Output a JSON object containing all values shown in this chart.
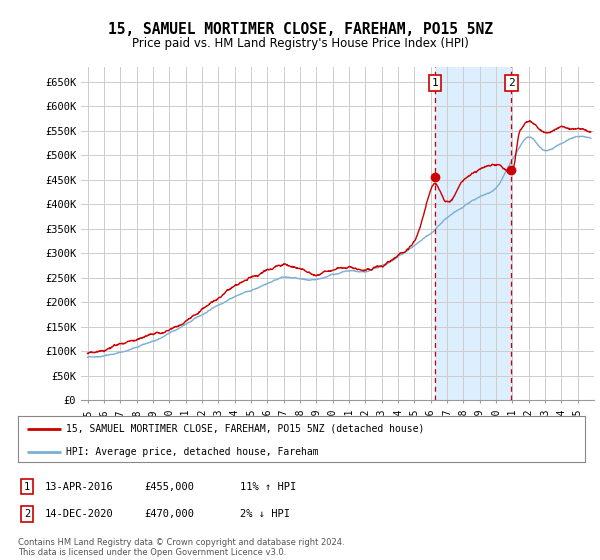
{
  "title": "15, SAMUEL MORTIMER CLOSE, FAREHAM, PO15 5NZ",
  "subtitle": "Price paid vs. HM Land Registry's House Price Index (HPI)",
  "ylim": [
    0,
    680000
  ],
  "yticks": [
    0,
    50000,
    100000,
    150000,
    200000,
    250000,
    300000,
    350000,
    400000,
    450000,
    500000,
    550000,
    600000,
    650000
  ],
  "ytick_labels": [
    "£0",
    "£50K",
    "£100K",
    "£150K",
    "£200K",
    "£250K",
    "£300K",
    "£350K",
    "£400K",
    "£450K",
    "£500K",
    "£550K",
    "£600K",
    "£650K"
  ],
  "hpi_color": "#7bafd4",
  "price_color": "#cc0000",
  "shade_color": "#ddeeff",
  "sale1_x": 2016.28,
  "sale1_y": 455000,
  "sale2_x": 2020.95,
  "sale2_y": 470000,
  "legend_line1": "15, SAMUEL MORTIMER CLOSE, FAREHAM, PO15 5NZ (detached house)",
  "legend_line2": "HPI: Average price, detached house, Fareham",
  "annot1_date": "13-APR-2016",
  "annot1_price": "£455,000",
  "annot1_hpi": "11% ↑ HPI",
  "annot2_date": "14-DEC-2020",
  "annot2_price": "£470,000",
  "annot2_hpi": "2% ↓ HPI",
  "footer": "Contains HM Land Registry data © Crown copyright and database right 2024.\nThis data is licensed under the Open Government Licence v3.0.",
  "background_color": "#ffffff",
  "grid_color": "#cccccc",
  "xlim_left": 1994.6,
  "xlim_right": 2026.0
}
